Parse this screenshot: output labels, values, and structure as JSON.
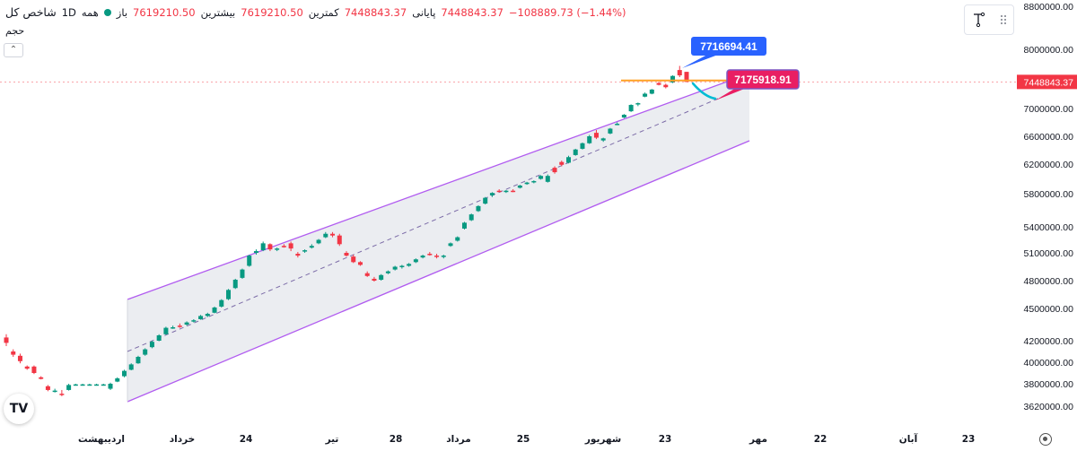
{
  "header": {
    "title": "شاخص کل",
    "interval": "1D",
    "exchange": "همه",
    "open_label": "باز",
    "open_value": "7619210.50",
    "high_label": "بیشترین",
    "high_value": "7619210.50",
    "low_label": "کمترین",
    "low_value": "7448843.37",
    "close_label": "پایانی",
    "close_value": "7448843.37",
    "change": "−108889.73 (−1.44%)"
  },
  "volume_label": "حجم",
  "collapse_icon": "chevron-up-icon",
  "logo_text": "TV",
  "colors": {
    "up": "#089981",
    "down": "#f23645",
    "channel_line": "#b15cf0",
    "channel_fill": "#e9ebf0",
    "midline": "#7d6da8",
    "resistance": "#ffa024",
    "forecast": "#00bcd4",
    "label_blue": "#2962ff",
    "label_pink": "#e91e63"
  },
  "chart_data": {
    "type": "candlestick",
    "y_ticks": [
      3620000,
      3800000,
      4000000,
      4200000,
      4500000,
      4800000,
      5100000,
      5400000,
      5800000,
      6200000,
      6600000,
      7000000,
      8000000,
      8800000
    ],
    "y_tick_labels": [
      "3620000.00",
      "3800000.00",
      "4000000.00",
      "4200000.00",
      "4500000.00",
      "4800000.00",
      "5100000.00",
      "5400000.00",
      "5800000.00",
      "6200000.00",
      "6600000.00",
      "7000000.00",
      "8000000.00",
      "8800000.00"
    ],
    "x_tick_labels": [
      "اردیبهشت",
      "خرداد",
      "24",
      "تیر",
      "28",
      "مرداد",
      "25",
      "شهریور",
      "23",
      "مهر",
      "22",
      "آبان",
      "23"
    ],
    "last_price_label": "7448843.37",
    "candles": [
      {
        "o": 4230000,
        "h": 4260000,
        "l": 4150000,
        "c": 4180000
      },
      {
        "o": 4100000,
        "h": 4120000,
        "l": 4050000,
        "c": 4070000
      },
      {
        "o": 4060000,
        "h": 4080000,
        "l": 3990000,
        "c": 4010000
      },
      {
        "o": 3960000,
        "h": 3970000,
        "l": 3930000,
        "c": 3940000
      },
      {
        "o": 3960000,
        "h": 3970000,
        "l": 3890000,
        "c": 3900000
      },
      {
        "o": 3860000,
        "h": 3870000,
        "l": 3840000,
        "c": 3845000
      },
      {
        "o": 3780000,
        "h": 3790000,
        "l": 3740000,
        "c": 3750000
      },
      {
        "o": 3740000,
        "h": 3760000,
        "l": 3730000,
        "c": 3745000
      },
      {
        "o": 3720000,
        "h": 3750000,
        "l": 3700000,
        "c": 3710000
      },
      {
        "o": 3750000,
        "h": 3800000,
        "l": 3745000,
        "c": 3790000
      },
      {
        "o": 3790000,
        "h": 3800000,
        "l": 3785000,
        "c": 3795000
      },
      {
        "o": 3790000,
        "h": 3800000,
        "l": 3785000,
        "c": 3795000
      },
      {
        "o": 3790000,
        "h": 3800000,
        "l": 3785000,
        "c": 3795000
      },
      {
        "o": 3790000,
        "h": 3800000,
        "l": 3785000,
        "c": 3795000
      },
      {
        "o": 3790000,
        "h": 3800000,
        "l": 3785000,
        "c": 3795000
      },
      {
        "o": 3760000,
        "h": 3810000,
        "l": 3750000,
        "c": 3800000
      },
      {
        "o": 3820000,
        "h": 3860000,
        "l": 3815000,
        "c": 3850000
      },
      {
        "o": 3870000,
        "h": 3930000,
        "l": 3860000,
        "c": 3920000
      },
      {
        "o": 3930000,
        "h": 3990000,
        "l": 3925000,
        "c": 3980000
      },
      {
        "o": 3990000,
        "h": 4060000,
        "l": 3985000,
        "c": 4050000
      },
      {
        "o": 4070000,
        "h": 4130000,
        "l": 4060000,
        "c": 4120000
      },
      {
        "o": 4140000,
        "h": 4200000,
        "l": 4130000,
        "c": 4190000
      },
      {
        "o": 4200000,
        "h": 4260000,
        "l": 4195000,
        "c": 4250000
      },
      {
        "o": 4260000,
        "h": 4330000,
        "l": 4255000,
        "c": 4320000
      },
      {
        "o": 4320000,
        "h": 4340000,
        "l": 4310000,
        "c": 4325000
      },
      {
        "o": 4340000,
        "h": 4360000,
        "l": 4320000,
        "c": 4330000
      },
      {
        "o": 4350000,
        "h": 4380000,
        "l": 4340000,
        "c": 4370000
      },
      {
        "o": 4380000,
        "h": 4400000,
        "l": 4370000,
        "c": 4390000
      },
      {
        "o": 4400000,
        "h": 4440000,
        "l": 4395000,
        "c": 4430000
      },
      {
        "o": 4430000,
        "h": 4460000,
        "l": 4420000,
        "c": 4450000
      },
      {
        "o": 4460000,
        "h": 4520000,
        "l": 4455000,
        "c": 4510000
      },
      {
        "o": 4520000,
        "h": 4600000,
        "l": 4510000,
        "c": 4590000
      },
      {
        "o": 4600000,
        "h": 4710000,
        "l": 4590000,
        "c": 4700000
      },
      {
        "o": 4720000,
        "h": 4820000,
        "l": 4710000,
        "c": 4810000
      },
      {
        "o": 4830000,
        "h": 4930000,
        "l": 4820000,
        "c": 4920000
      },
      {
        "o": 4960000,
        "h": 5080000,
        "l": 4950000,
        "c": 5070000
      },
      {
        "o": 5100000,
        "h": 5140000,
        "l": 5080000,
        "c": 5120000
      },
      {
        "o": 5130000,
        "h": 5230000,
        "l": 5120000,
        "c": 5210000
      },
      {
        "o": 5200000,
        "h": 5210000,
        "l": 5120000,
        "c": 5140000
      },
      {
        "o": 5140000,
        "h": 5160000,
        "l": 5120000,
        "c": 5150000
      },
      {
        "o": 5180000,
        "h": 5200000,
        "l": 5160000,
        "c": 5170000
      },
      {
        "o": 5210000,
        "h": 5230000,
        "l": 5120000,
        "c": 5150000
      },
      {
        "o": 5090000,
        "h": 5110000,
        "l": 5050000,
        "c": 5070000
      },
      {
        "o": 5120000,
        "h": 5140000,
        "l": 5100000,
        "c": 5130000
      },
      {
        "o": 5160000,
        "h": 5200000,
        "l": 5150000,
        "c": 5180000
      },
      {
        "o": 5210000,
        "h": 5260000,
        "l": 5200000,
        "c": 5250000
      },
      {
        "o": 5280000,
        "h": 5340000,
        "l": 5270000,
        "c": 5320000
      },
      {
        "o": 5320000,
        "h": 5340000,
        "l": 5280000,
        "c": 5300000
      },
      {
        "o": 5300000,
        "h": 5320000,
        "l": 5180000,
        "c": 5200000
      },
      {
        "o": 5100000,
        "h": 5120000,
        "l": 5060000,
        "c": 5070000
      },
      {
        "o": 5060000,
        "h": 5080000,
        "l": 4990000,
        "c": 5000000
      },
      {
        "o": 5000000,
        "h": 5010000,
        "l": 4960000,
        "c": 4970000
      },
      {
        "o": 4880000,
        "h": 4900000,
        "l": 4840000,
        "c": 4850000
      },
      {
        "o": 4820000,
        "h": 4840000,
        "l": 4790000,
        "c": 4800000
      },
      {
        "o": 4810000,
        "h": 4870000,
        "l": 4800000,
        "c": 4860000
      },
      {
        "o": 4880000,
        "h": 4910000,
        "l": 4870000,
        "c": 4900000
      },
      {
        "o": 4920000,
        "h": 4960000,
        "l": 4910000,
        "c": 4950000
      },
      {
        "o": 4950000,
        "h": 4970000,
        "l": 4930000,
        "c": 4960000
      },
      {
        "o": 4960000,
        "h": 4990000,
        "l": 4950000,
        "c": 4980000
      },
      {
        "o": 5000000,
        "h": 5040000,
        "l": 4990000,
        "c": 5030000
      },
      {
        "o": 5050000,
        "h": 5080000,
        "l": 5040000,
        "c": 5070000
      },
      {
        "o": 5090000,
        "h": 5110000,
        "l": 5070000,
        "c": 5080000
      },
      {
        "o": 5070000,
        "h": 5090000,
        "l": 5040000,
        "c": 5060000
      },
      {
        "o": 5060000,
        "h": 5080000,
        "l": 5040000,
        "c": 5070000
      },
      {
        "o": 5180000,
        "h": 5220000,
        "l": 5170000,
        "c": 5210000
      },
      {
        "o": 5240000,
        "h": 5290000,
        "l": 5230000,
        "c": 5280000
      },
      {
        "o": 5380000,
        "h": 5460000,
        "l": 5370000,
        "c": 5450000
      },
      {
        "o": 5480000,
        "h": 5560000,
        "l": 5470000,
        "c": 5550000
      },
      {
        "o": 5590000,
        "h": 5660000,
        "l": 5580000,
        "c": 5650000
      },
      {
        "o": 5680000,
        "h": 5760000,
        "l": 5670000,
        "c": 5750000
      },
      {
        "o": 5780000,
        "h": 5820000,
        "l": 5760000,
        "c": 5810000
      },
      {
        "o": 5840000,
        "h": 5860000,
        "l": 5820000,
        "c": 5830000
      },
      {
        "o": 5830000,
        "h": 5850000,
        "l": 5810000,
        "c": 5840000
      },
      {
        "o": 5840000,
        "h": 5860000,
        "l": 5820000,
        "c": 5830000
      },
      {
        "o": 5880000,
        "h": 5920000,
        "l": 5870000,
        "c": 5910000
      },
      {
        "o": 5930000,
        "h": 5960000,
        "l": 5920000,
        "c": 5950000
      },
      {
        "o": 5960000,
        "h": 5980000,
        "l": 5940000,
        "c": 5970000
      },
      {
        "o": 6000000,
        "h": 6050000,
        "l": 5990000,
        "c": 6040000
      },
      {
        "o": 5960000,
        "h": 6060000,
        "l": 5950000,
        "c": 6040000
      },
      {
        "o": 6150000,
        "h": 6170000,
        "l": 6070000,
        "c": 6090000
      },
      {
        "o": 6230000,
        "h": 6250000,
        "l": 6170000,
        "c": 6190000
      },
      {
        "o": 6220000,
        "h": 6320000,
        "l": 6210000,
        "c": 6300000
      },
      {
        "o": 6330000,
        "h": 6420000,
        "l": 6320000,
        "c": 6410000
      },
      {
        "o": 6420000,
        "h": 6510000,
        "l": 6410000,
        "c": 6500000
      },
      {
        "o": 6500000,
        "h": 6620000,
        "l": 6490000,
        "c": 6600000
      },
      {
        "o": 6650000,
        "h": 6690000,
        "l": 6560000,
        "c": 6580000
      },
      {
        "o": 6540000,
        "h": 6580000,
        "l": 6520000,
        "c": 6570000
      },
      {
        "o": 6640000,
        "h": 6720000,
        "l": 6630000,
        "c": 6710000
      },
      {
        "o": 6770000,
        "h": 6800000,
        "l": 6760000,
        "c": 6780000
      },
      {
        "o": 6870000,
        "h": 6920000,
        "l": 6860000,
        "c": 6910000
      },
      {
        "o": 6960000,
        "h": 7070000,
        "l": 6950000,
        "c": 7060000
      },
      {
        "o": 7070000,
        "h": 7100000,
        "l": 7040000,
        "c": 7090000
      },
      {
        "o": 7200000,
        "h": 7270000,
        "l": 7190000,
        "c": 7250000
      },
      {
        "o": 7250000,
        "h": 7330000,
        "l": 7240000,
        "c": 7320000
      },
      {
        "o": 7430000,
        "h": 7450000,
        "l": 7390000,
        "c": 7400000
      },
      {
        "o": 7400000,
        "h": 7420000,
        "l": 7340000,
        "c": 7360000
      },
      {
        "o": 7440000,
        "h": 7560000,
        "l": 7430000,
        "c": 7550000
      },
      {
        "o": 7650000,
        "h": 7720000,
        "l": 7530000,
        "c": 7560000
      },
      {
        "o": 7619210.5,
        "h": 7619210.5,
        "l": 7448843.37,
        "c": 7448843.37
      }
    ],
    "annotations": [
      {
        "text": "7716694.41",
        "color": "#2962ff"
      },
      {
        "text": "7175918.91",
        "color": "#e91e63"
      }
    ],
    "resistance_level": 7716694.41,
    "grid": false
  }
}
